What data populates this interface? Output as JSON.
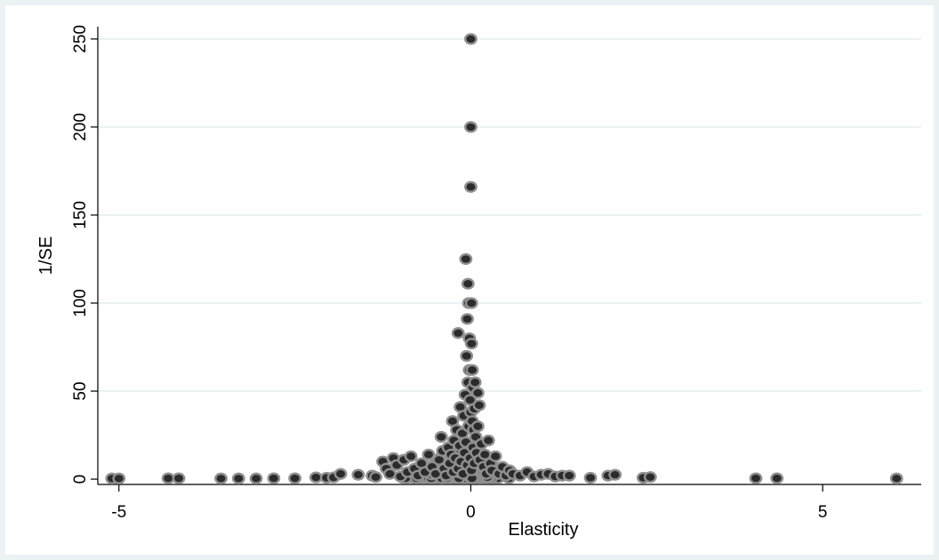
{
  "chart_data": {
    "type": "scatter",
    "title": "",
    "xlabel": "Elasticity",
    "ylabel": "1/SE",
    "xlim": [
      -5.3,
      6.4
    ],
    "ylim": [
      -3,
      257
    ],
    "xticks": [
      -5,
      0,
      5
    ],
    "yticks": [
      0,
      50,
      100,
      150,
      200,
      250
    ],
    "xtick_labels": [
      "-5",
      "0",
      "5"
    ],
    "ytick_labels": [
      "0",
      "50",
      "100",
      "150",
      "200",
      "250"
    ],
    "grid": "horizontal",
    "legend": "none",
    "colors": {
      "background": "#eaf2f3",
      "plot": "#ffffff",
      "gridline": "#eaf2f3",
      "marker_fill": "#2b2b2b",
      "marker_edge": "#8f8f8f"
    },
    "points": [
      [
        -5.1,
        0.4
      ],
      [
        -5.0,
        0.4
      ],
      [
        -4.3,
        0.5
      ],
      [
        -4.15,
        0.5
      ],
      [
        -3.55,
        0.4
      ],
      [
        -3.3,
        0.4
      ],
      [
        -3.05,
        0.4
      ],
      [
        -2.8,
        0.5
      ],
      [
        -2.5,
        0.5
      ],
      [
        -2.2,
        1.0
      ],
      [
        -2.05,
        0.8
      ],
      [
        -1.95,
        1.0
      ],
      [
        -1.85,
        3.0
      ],
      [
        -1.6,
        2.5
      ],
      [
        -1.4,
        2.0
      ],
      [
        -1.35,
        1.2
      ],
      [
        -1.25,
        10.0
      ],
      [
        -1.2,
        6.0
      ],
      [
        -1.15,
        3.0
      ],
      [
        -1.1,
        12.0
      ],
      [
        -1.05,
        8.0
      ],
      [
        -1.0,
        1.5
      ],
      [
        -0.95,
        11.0
      ],
      [
        -0.9,
        4.0
      ],
      [
        -0.85,
        13.0
      ],
      [
        -0.8,
        6.0
      ],
      [
        -0.75,
        2.0
      ],
      [
        -0.7,
        9.0
      ],
      [
        -0.65,
        4.0
      ],
      [
        -0.6,
        14.0
      ],
      [
        -0.55,
        7.0
      ],
      [
        -0.5,
        3.0
      ],
      [
        -0.45,
        11.0
      ],
      [
        -0.42,
        24.0
      ],
      [
        -0.4,
        16.0
      ],
      [
        -0.38,
        6.0
      ],
      [
        -0.35,
        2.0
      ],
      [
        -0.32,
        18.0
      ],
      [
        -0.3,
        9.0
      ],
      [
        -0.28,
        14.0
      ],
      [
        -0.26,
        33.0
      ],
      [
        -0.25,
        4.0
      ],
      [
        -0.24,
        22.0
      ],
      [
        -0.22,
        12.0
      ],
      [
        -0.2,
        28.0
      ],
      [
        -0.18,
        6.0
      ],
      [
        -0.18,
        83.0
      ],
      [
        -0.16,
        19.0
      ],
      [
        -0.15,
        41.0
      ],
      [
        -0.14,
        10.0
      ],
      [
        -0.12,
        26.0
      ],
      [
        -0.11,
        3.0
      ],
      [
        -0.1,
        36.0
      ],
      [
        -0.09,
        15.0
      ],
      [
        -0.08,
        48.0
      ],
      [
        -0.07,
        21.0
      ],
      [
        -0.07,
        125.0
      ],
      [
        -0.06,
        70.0
      ],
      [
        -0.05,
        91.0
      ],
      [
        -0.05,
        8.0
      ],
      [
        -0.04,
        111.0
      ],
      [
        -0.04,
        55.0
      ],
      [
        -0.03,
        100.0
      ],
      [
        -0.03,
        30.0
      ],
      [
        -0.02,
        62.0
      ],
      [
        -0.02,
        80.0
      ],
      [
        -0.01,
        45.0
      ],
      [
        -0.01,
        12.0
      ],
      [
        0.0,
        250.0
      ],
      [
        0.0,
        200.0
      ],
      [
        0.0,
        166.0
      ],
      [
        0.0,
        38.0
      ],
      [
        0.01,
        100.0
      ],
      [
        0.01,
        77.0
      ],
      [
        0.01,
        5.0
      ],
      [
        0.02,
        62.0
      ],
      [
        0.02,
        33.0
      ],
      [
        0.03,
        52.0
      ],
      [
        0.03,
        18.0
      ],
      [
        0.04,
        28.0
      ],
      [
        0.05,
        40.0
      ],
      [
        0.05,
        9.0
      ],
      [
        0.06,
        55.0
      ],
      [
        0.07,
        24.0
      ],
      [
        0.08,
        15.0
      ],
      [
        0.1,
        49.0
      ],
      [
        0.1,
        30.0
      ],
      [
        0.12,
        42.0
      ],
      [
        0.13,
        11.0
      ],
      [
        0.15,
        20.0
      ],
      [
        0.18,
        7.0
      ],
      [
        0.2,
        14.0
      ],
      [
        0.22,
        3.0
      ],
      [
        0.25,
        22.0
      ],
      [
        0.28,
        9.0
      ],
      [
        0.3,
        5.0
      ],
      [
        0.35,
        13.0
      ],
      [
        0.4,
        3.0
      ],
      [
        0.45,
        7.0
      ],
      [
        0.5,
        2.0
      ],
      [
        0.55,
        5.0
      ],
      [
        0.6,
        3.0
      ],
      [
        0.7,
        2.0
      ],
      [
        0.8,
        4.0
      ],
      [
        0.9,
        1.5
      ],
      [
        1.0,
        2.5
      ],
      [
        1.1,
        3.0
      ],
      [
        1.2,
        1.5
      ],
      [
        1.3,
        2.0
      ],
      [
        1.4,
        2.0
      ],
      [
        1.7,
        0.8
      ],
      [
        1.95,
        2.0
      ],
      [
        2.05,
        2.5
      ],
      [
        2.45,
        0.8
      ],
      [
        2.55,
        1.2
      ],
      [
        4.05,
        0.5
      ],
      [
        4.35,
        0.5
      ],
      [
        6.05,
        0.4
      ]
    ],
    "cluster": {
      "center_x": -0.2,
      "spread_x": 0.55,
      "max_y": 18,
      "count": 260,
      "seed": 7
    }
  }
}
